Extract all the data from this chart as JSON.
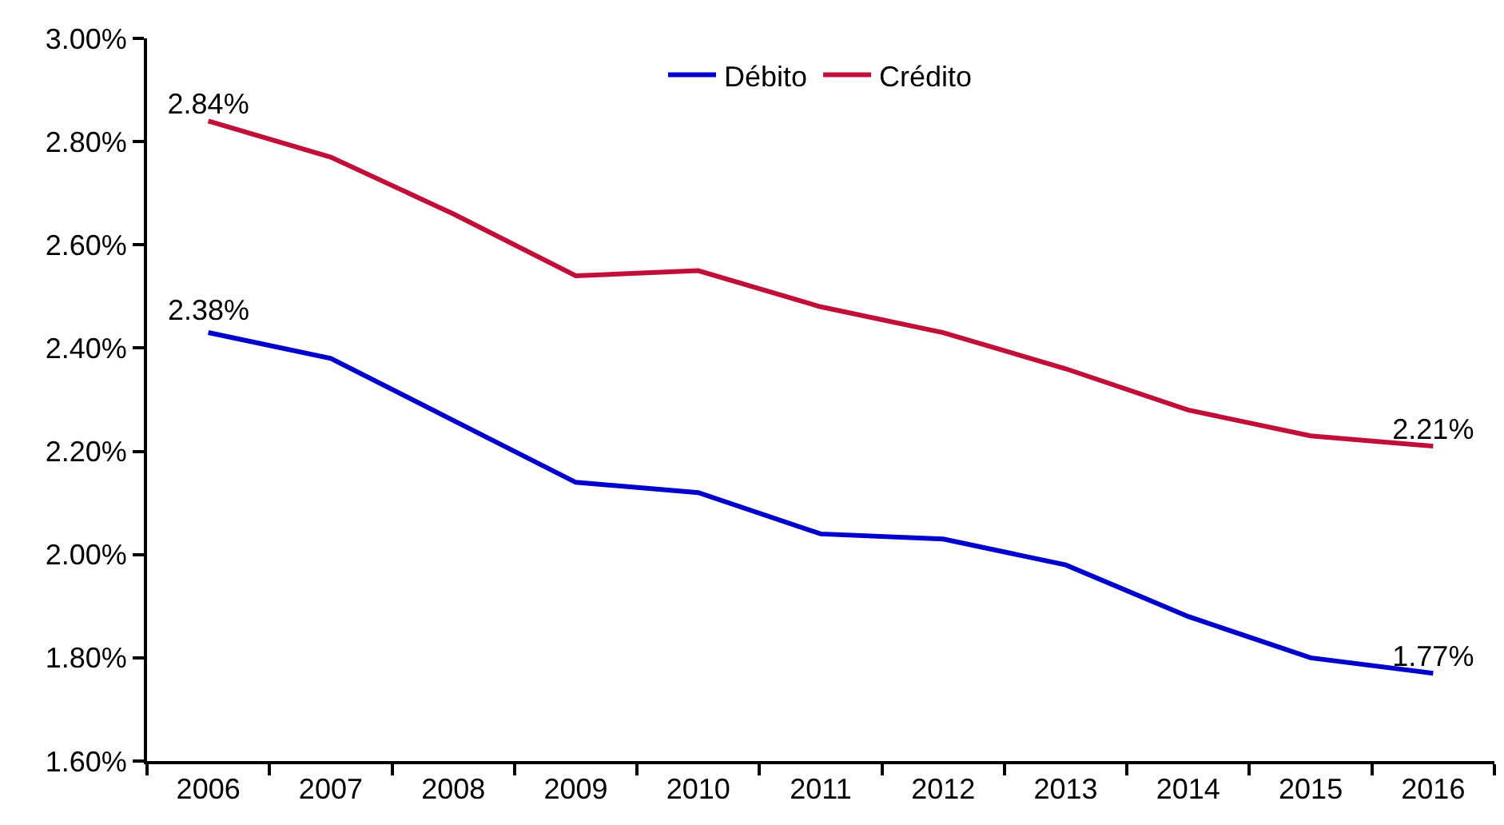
{
  "chart_data": {
    "type": "line",
    "categories": [
      "2006",
      "2007",
      "2008",
      "2009",
      "2010",
      "2011",
      "2012",
      "2013",
      "2014",
      "2015",
      "2016"
    ],
    "series": [
      {
        "name": "Débito",
        "color": "#0000cc",
        "values": [
          2.43,
          2.38,
          2.26,
          2.14,
          2.12,
          2.04,
          2.03,
          1.98,
          1.88,
          1.8,
          1.77
        ],
        "value_labels": [
          null,
          null,
          null,
          null,
          null,
          null,
          null,
          null,
          null,
          null,
          "1.77%"
        ]
      },
      {
        "name": "Crédito",
        "color": "#c0103a",
        "values": [
          2.84,
          2.77,
          2.66,
          2.54,
          2.55,
          2.48,
          2.43,
          2.36,
          2.28,
          2.23,
          2.21
        ],
        "value_labels": [
          "2.84%",
          null,
          null,
          null,
          null,
          null,
          null,
          null,
          null,
          null,
          "2.21%"
        ]
      }
    ],
    "ylim": [
      1.6,
      3.0
    ],
    "yticks": [
      {
        "value": 1.6,
        "label": "1.60%"
      },
      {
        "value": 1.8,
        "label": "1.80%"
      },
      {
        "value": 2.0,
        "label": "2.00%"
      },
      {
        "value": 2.2,
        "label": "2.20%"
      },
      {
        "value": 2.4,
        "label": "2.40%"
      },
      {
        "value": 2.6,
        "label": "2.60%"
      },
      {
        "value": 2.8,
        "label": "2.80%"
      },
      {
        "value": 3.0,
        "label": "3.00%"
      }
    ],
    "annotations": [
      "2.38%"
    ],
    "grid": false,
    "legend": "top",
    "marker": "none",
    "line_style": "solid"
  }
}
